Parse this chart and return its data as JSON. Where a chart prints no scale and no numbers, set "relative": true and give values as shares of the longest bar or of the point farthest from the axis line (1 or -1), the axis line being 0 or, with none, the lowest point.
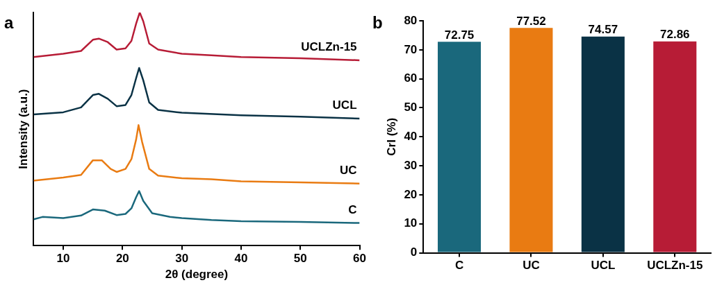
{
  "chart_data": [
    {
      "type": "line",
      "title": "a",
      "xlabel": "2θ (degree)",
      "ylabel": "Intensity (a.u.)",
      "relative": true,
      "xlim": [
        5,
        60
      ],
      "xticks": [
        10,
        20,
        30,
        40,
        50,
        60
      ],
      "grid": false,
      "legend": false,
      "marker": "none",
      "line_style": "solid",
      "series": [
        {
          "name": "C",
          "color": "#1a687c",
          "x": [
            5,
            6.5,
            10,
            13,
            15,
            17,
            19,
            20.5,
            21.5,
            22.3,
            22.8,
            23.5,
            25,
            28,
            30,
            35,
            40,
            50,
            60
          ],
          "values": [
            0.113,
            0.123,
            0.118,
            0.129,
            0.155,
            0.15,
            0.131,
            0.136,
            0.16,
            0.208,
            0.234,
            0.192,
            0.139,
            0.123,
            0.118,
            0.11,
            0.105,
            0.102,
            0.097
          ]
        },
        {
          "name": "UC",
          "color": "#e97b12",
          "x": [
            5,
            10,
            13,
            15,
            16.5,
            18,
            19,
            20.5,
            21.5,
            22.3,
            22.7,
            23.3,
            24.5,
            26,
            30,
            35,
            40,
            50,
            60
          ],
          "values": [
            0.279,
            0.292,
            0.303,
            0.366,
            0.366,
            0.329,
            0.316,
            0.329,
            0.371,
            0.456,
            0.517,
            0.445,
            0.329,
            0.3,
            0.289,
            0.285,
            0.276,
            0.271,
            0.266
          ]
        },
        {
          "name": "UCL",
          "color": "#0a3245",
          "x": [
            5,
            10,
            13,
            15,
            16,
            17.5,
            19,
            20.5,
            21.5,
            22.3,
            22.8,
            23.5,
            24.5,
            26,
            30,
            40,
            50,
            60
          ],
          "values": [
            0.563,
            0.572,
            0.593,
            0.646,
            0.651,
            0.63,
            0.598,
            0.603,
            0.646,
            0.719,
            0.762,
            0.709,
            0.614,
            0.582,
            0.57,
            0.559,
            0.553,
            0.545
          ]
        },
        {
          "name": "UCLZn-15",
          "color": "#b71c36",
          "x": [
            5,
            10,
            13,
            15,
            16,
            17.5,
            19,
            20.5,
            21.5,
            22.3,
            22.9,
            23.5,
            24.5,
            26,
            30,
            35,
            40,
            50,
            60
          ],
          "values": [
            0.809,
            0.823,
            0.835,
            0.883,
            0.888,
            0.873,
            0.841,
            0.846,
            0.878,
            0.953,
            1.0,
            0.962,
            0.867,
            0.841,
            0.823,
            0.816,
            0.809,
            0.804,
            0.795
          ]
        }
      ]
    },
    {
      "type": "bar",
      "title": "b",
      "ylabel": "CrI (%)",
      "categories": [
        "C",
        "UC",
        "UCL",
        "UCLZn-15"
      ],
      "values": [
        72.75,
        77.52,
        74.57,
        72.86
      ],
      "colors": [
        "#1a687c",
        "#e97b12",
        "#0a3245",
        "#b71c36"
      ],
      "ylim": [
        0,
        80
      ],
      "yticks": [
        0,
        10,
        20,
        30,
        40,
        50,
        60,
        70,
        80
      ],
      "data_labels": true,
      "grid": false,
      "legend": false
    }
  ]
}
